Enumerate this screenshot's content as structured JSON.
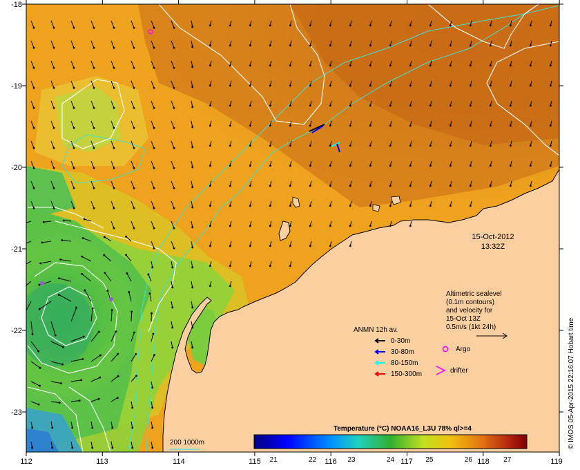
{
  "map": {
    "lon_range": [
      112,
      119
    ],
    "lat_range": [
      -23.5,
      -18
    ],
    "lon_ticks": [
      "112",
      "113",
      "114",
      "115",
      "116",
      "117",
      "118",
      "119"
    ],
    "lat_ticks": [
      "-18",
      "-19",
      "-20",
      "-21",
      "-22",
      "-23"
    ],
    "land_color": "#fbcf9f",
    "grid": false
  },
  "date": {
    "line1": "15-Oct-2012",
    "line2": "13:32Z"
  },
  "altimetry": {
    "lines": [
      "Altimetric sealevel",
      "(0.1m contours)",
      "and velocity for",
      "15-Oct 13Z",
      "0.5m/s (1kt 24h)"
    ]
  },
  "anmn": {
    "title": "ANMN 12h av.",
    "items": [
      {
        "label": "0-30m",
        "color": "#000000"
      },
      {
        "label": "30-80m",
        "color": "#0000ff"
      },
      {
        "label": "80-150m",
        "color": "#00ffff"
      },
      {
        "label": "150-300m",
        "color": "#ff0000"
      }
    ]
  },
  "markers": {
    "argo": {
      "label": "Argo",
      "color": "#ff00ff"
    },
    "drifter": {
      "label": "drifter",
      "color": "#ff00ff"
    }
  },
  "bathy": {
    "label": "200  1000m",
    "color": "#40e0d0"
  },
  "colorbar": {
    "title": "Temperature (°C) NOAA16_L3U 78% ql>=4",
    "range": [
      20.5,
      27.5
    ],
    "ticks": [
      "21",
      "22",
      "23",
      "24",
      "25",
      "26",
      "27"
    ]
  },
  "credit": "© IMOS 05-Apr-2015 22:16:07 Hobart time"
}
